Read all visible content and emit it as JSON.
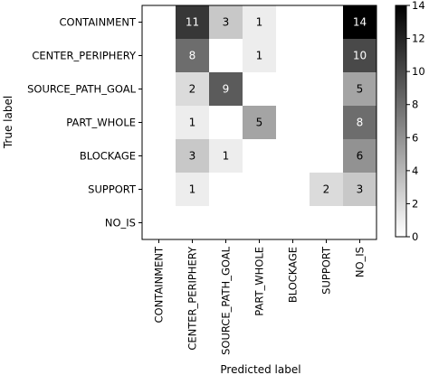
{
  "chart_data": {
    "type": "heatmap",
    "title": "",
    "xlabel": "Predicted label",
    "ylabel": "True label",
    "rows": [
      "CONTAINMENT",
      "CENTER_PERIPHERY",
      "SOURCE_PATH_GOAL",
      "PART_WHOLE",
      "BLOCKAGE",
      "SUPPORT",
      "NO_IS"
    ],
    "columns": [
      "CONTAINMENT",
      "CENTER_PERIPHERY",
      "SOURCE_PATH_GOAL",
      "PART_WHOLE",
      "BLOCKAGE",
      "SUPPORT",
      "NO_IS"
    ],
    "values": [
      [
        0,
        11,
        3,
        1,
        0,
        0,
        14
      ],
      [
        0,
        8,
        0,
        1,
        0,
        0,
        10
      ],
      [
        0,
        2,
        9,
        0,
        0,
        0,
        5
      ],
      [
        0,
        1,
        0,
        5,
        0,
        0,
        8
      ],
      [
        0,
        3,
        1,
        0,
        0,
        0,
        6
      ],
      [
        0,
        1,
        0,
        0,
        0,
        2,
        3
      ],
      [
        0,
        0,
        0,
        0,
        0,
        0,
        0
      ]
    ],
    "colorbar": {
      "min": 0,
      "max": 14,
      "ticks": [
        "0",
        "2",
        "4",
        "6",
        "8",
        "10",
        "12",
        "14"
      ],
      "colormap": "gray_r"
    }
  }
}
